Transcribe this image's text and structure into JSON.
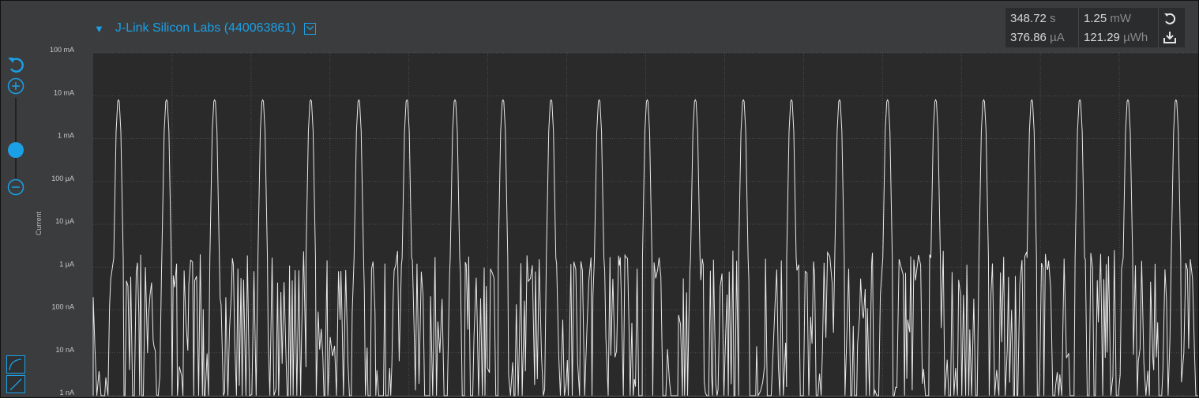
{
  "header": {
    "device_name": "J-Link Silicon Labs (440063861)"
  },
  "stats": {
    "time_value": "348.72",
    "time_unit": "s",
    "current_value": "376.86",
    "current_unit": "µA",
    "power_value": "1.25",
    "power_unit": "mW",
    "energy_value": "121.29",
    "energy_unit": "µWh"
  },
  "colors": {
    "accent": "#1ba0e5",
    "plot_bg": "#2a2a2b",
    "trace": "#e8e8e8"
  },
  "icons": [
    "reset-zoom-icon",
    "zoom-in-icon",
    "zoom-out-icon",
    "reset-icon",
    "download-icon",
    "curve-mode-icon",
    "line-mode-icon"
  ],
  "chart_data": {
    "type": "line",
    "ylabel": "Current",
    "yscale": "log",
    "ylim": [
      1e-09,
      0.1
    ],
    "yticks": [
      "100 mA",
      "10 mA",
      "1 mA",
      "100 µA",
      "10 µA",
      "1 µA",
      "100 nA",
      "10 nA",
      "1 nA"
    ],
    "grid": true,
    "series": [
      {
        "peak_current": 0.008,
        "peak_count": 23,
        "peak_period_fraction": 0.0435,
        "baseline_max_current": 2.5e-06,
        "baseline_min_current": 1e-09
      }
    ]
  }
}
